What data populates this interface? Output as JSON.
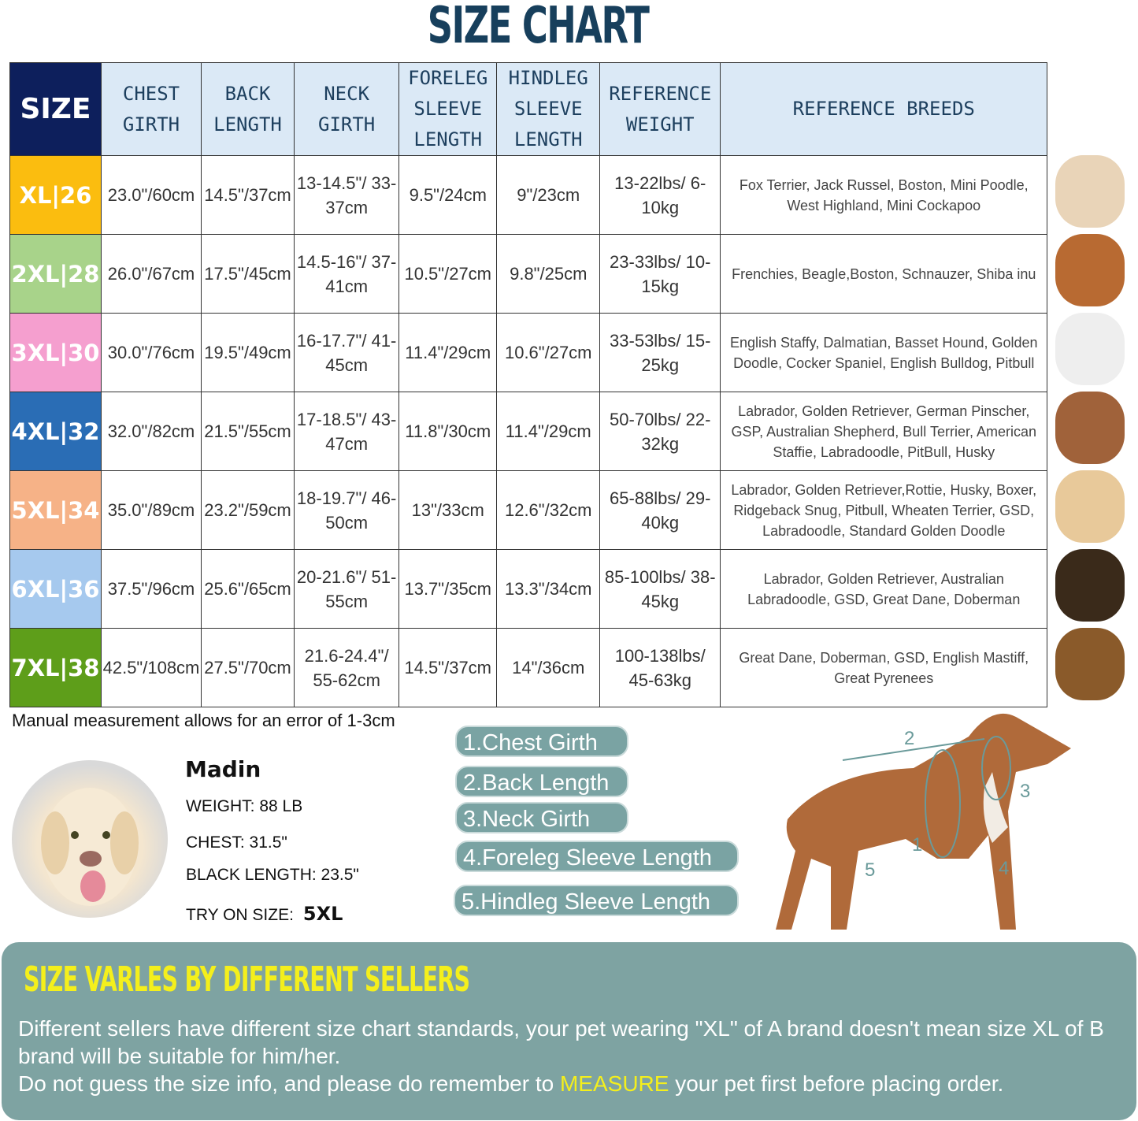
{
  "title": "SIZE CHART",
  "headers": {
    "size": "SIZE",
    "chest": "CHEST GIRTH",
    "back": "BACK LENGTH",
    "neck": "NECK GIRTH",
    "foreleg": "FORELEG SLEEVE LENGTH",
    "hindleg": "HINDLEG SLEEVE LENGTH",
    "weight": "REFERENCE WEIGHT",
    "breeds": "REFERENCE BREEDS"
  },
  "rows": [
    {
      "size": "XL|26",
      "color": "#fbbd0f",
      "chest": "23.0\"/60cm",
      "back": "14.5\"/37cm",
      "neck": "13-14.5\"/ 33-37cm",
      "foreleg": "9.5\"/24cm",
      "hindleg": "9\"/23cm",
      "weight": "13-22lbs/ 6-10kg",
      "breeds": "Fox Terrier, Jack Russel, Boston, Mini Poodle, West Highland, Mini Cockapoo"
    },
    {
      "size": "2XL|28",
      "color": "#a8d38a",
      "chest": "26.0\"/67cm",
      "back": "17.5\"/45cm",
      "neck": "14.5-16\"/ 37-41cm",
      "foreleg": "10.5\"/27cm",
      "hindleg": "9.8\"/25cm",
      "weight": "23-33lbs/ 10-15kg",
      "breeds": "Frenchies, Beagle,Boston, Schnauzer, Shiba inu"
    },
    {
      "size": "3XL|30",
      "color": "#f59fcf",
      "chest": "30.0\"/76cm",
      "back": "19.5\"/49cm",
      "neck": "16-17.7\"/ 41-45cm",
      "foreleg": "11.4\"/29cm",
      "hindleg": "10.6\"/27cm",
      "weight": "33-53lbs/ 15-25kg",
      "breeds": "English Staffy, Dalmatian, Basset Hound, Golden Doodle, Cocker Spaniel, English Bulldog, Pitbull"
    },
    {
      "size": "4XL|32",
      "color": "#2a6db5",
      "chest": "32.0\"/82cm",
      "back": "21.5\"/55cm",
      "neck": "17-18.5\"/ 43-47cm",
      "foreleg": "11.8\"/30cm",
      "hindleg": "11.4\"/29cm",
      "weight": "50-70lbs/ 22-32kg",
      "breeds": "Labrador, Golden Retriever, German Pinscher, GSP, Australian Shepherd, Bull Terrier, American Staffie, Labradoodle, PitBull, Husky"
    },
    {
      "size": "5XL|34",
      "color": "#f6b287",
      "chest": "35.0\"/89cm",
      "back": "23.2\"/59cm",
      "neck": "18-19.7\"/ 46-50cm",
      "foreleg": "13\"/33cm",
      "hindleg": "12.6\"/32cm",
      "weight": "65-88lbs/ 29-40kg",
      "breeds": "Labrador, Golden Retriever,Rottie, Husky, Boxer, Ridgeback Snug, Pitbull, Wheaten Terrier, GSD, Labradoodle,  Standard Golden Doodle"
    },
    {
      "size": "6XL|36",
      "color": "#a6c9ee",
      "chest": "37.5\"/96cm",
      "back": "25.6\"/65cm",
      "neck": "20-21.6\"/ 51-55cm",
      "foreleg": "13.7\"/35cm",
      "hindleg": "13.3\"/34cm",
      "weight": "85-100lbs/ 38-45kg",
      "breeds": "Labrador, Golden Retriever, Australian Labradoodle, GSD, Great Dane, Doberman"
    },
    {
      "size": "7XL|38",
      "color": "#5e9e1a",
      "chest": "42.5\"/108cm",
      "back": "27.5\"/70cm",
      "neck": "21.6-24.4\"/ 55-62cm",
      "foreleg": "14.5\"/37cm",
      "hindleg": "14\"/36cm",
      "weight": "100-138lbs/ 45-63kg",
      "breeds": "Great Dane, Doberman, GSD, English Mastiff, Great Pyrenees"
    }
  ],
  "note": "Manual measurement allows for an error of 1-3cm",
  "profile": {
    "name": "Madin",
    "weight": "WEIGHT: 88 LB",
    "chest": "CHEST: 31.5\"",
    "back": "BLACK LENGTH: 23.5\"",
    "try_label": "TRY ON SIZE:",
    "try_size": "5XL"
  },
  "legend": [
    "1.Chest Girth",
    "2.Back Length",
    "3.Neck Girth",
    "4.Foreleg Sleeve Length",
    "5.Hindleg Sleeve Length"
  ],
  "diagram_numbers": [
    "1",
    "2",
    "3",
    "4",
    "5"
  ],
  "panel": {
    "title": "SIZE VARLES BY DIFFERENT SELLERS",
    "line1": "Different sellers have different size chart standards, your pet wearing \"XL\" of A brand doesn't mean size XL of B brand will be suitable for him/her.",
    "line2a": "Do not guess the size info, and please do remember to ",
    "line2hl": "MEASURE",
    "line2b": " your pet first before placing order."
  }
}
